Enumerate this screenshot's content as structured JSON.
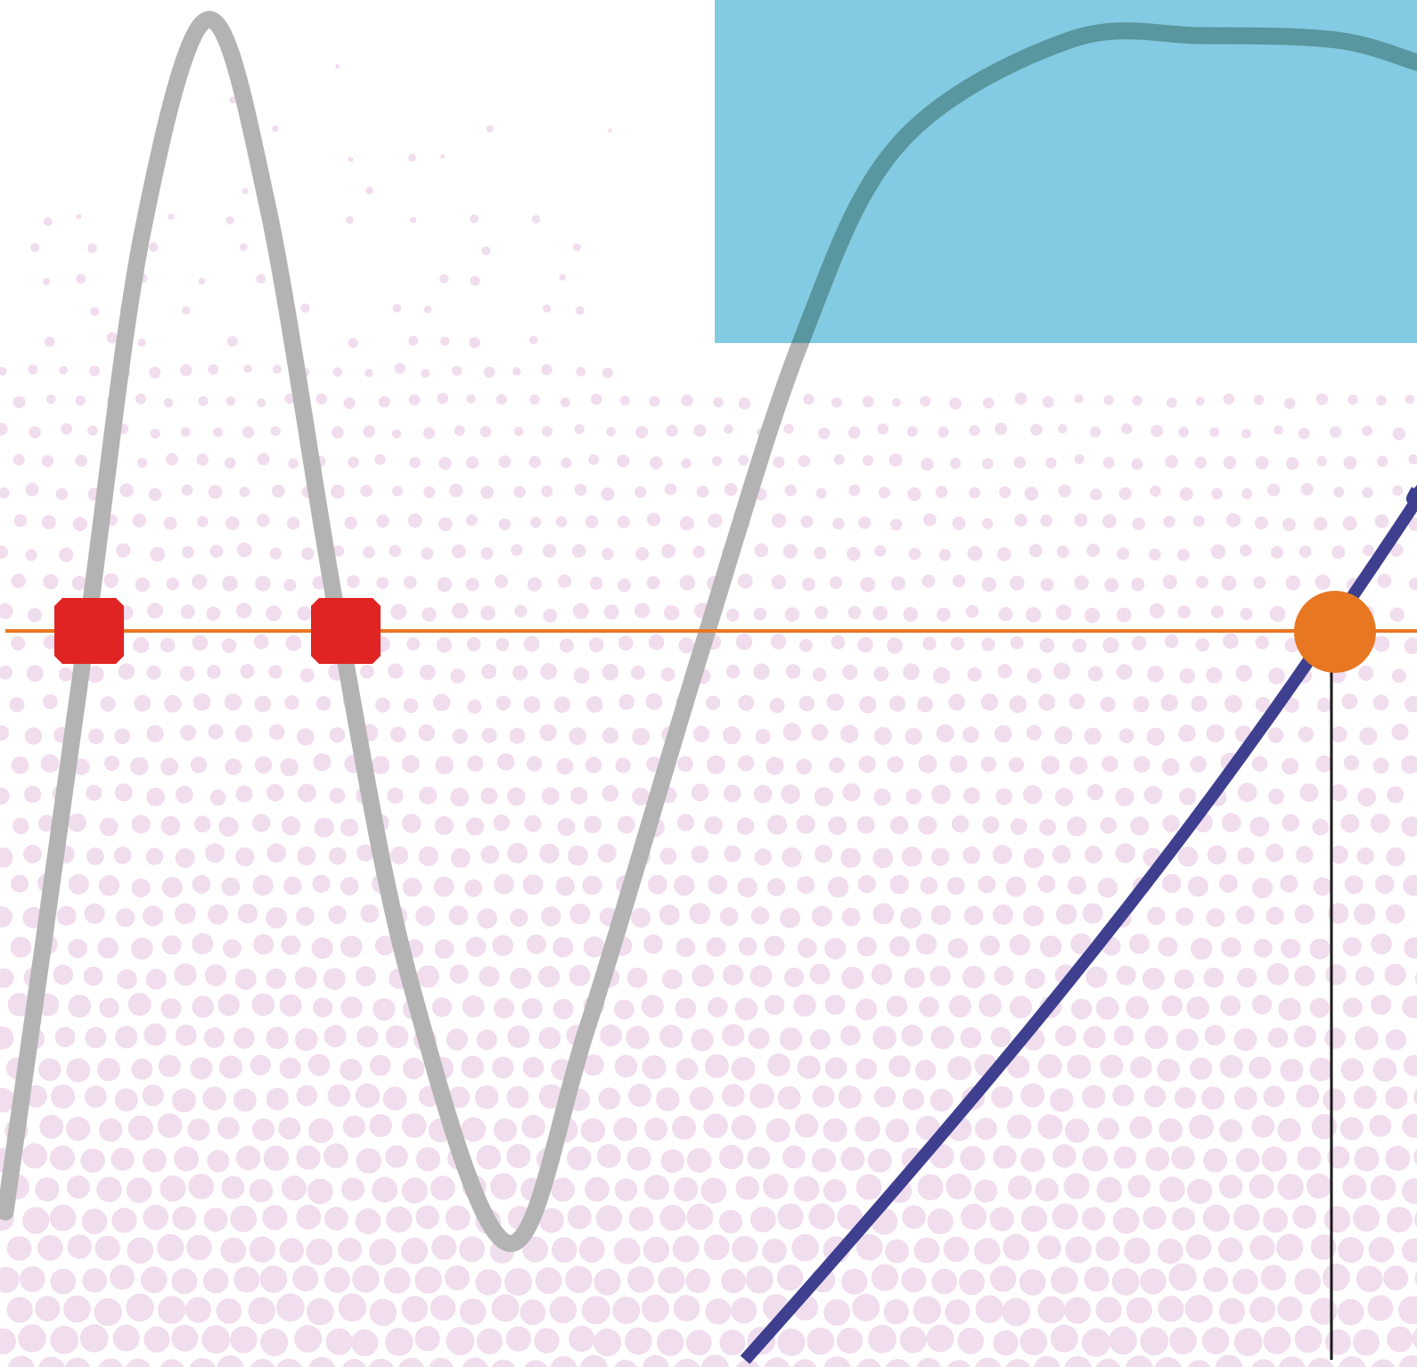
{
  "colors": {
    "background": "#ffffff",
    "halftone_dots": "#f0dded",
    "panel_fill": "#83cbe2",
    "oscillating_curve": "#b3b3b3",
    "oscillating_curve_over_panel": "#5896a0",
    "rising_curve": "#3e3f8e",
    "horizontal_line": "#e87722",
    "intersection_markers": "#e02424",
    "highlight_point": "#e87722",
    "drop_line": "#1a1a1a"
  },
  "elements": {
    "background_pattern": "halftone-dot-gradient",
    "panel": "light-blue-rectangle",
    "curves": [
      "oscillating-gray-curve",
      "rising-navy-curve"
    ],
    "markers": [
      "red-octagon-marker",
      "red-octagon-marker",
      "orange-circle-marker"
    ],
    "lines": [
      "horizontal-orange-line",
      "vertical-drop-line"
    ]
  },
  "labels": {}
}
